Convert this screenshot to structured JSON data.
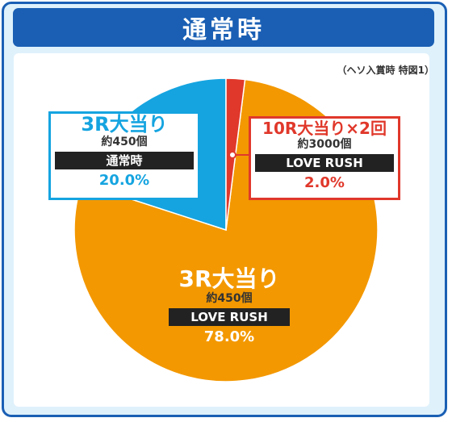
{
  "header": {
    "title": "通常時"
  },
  "note": "（ヘソ入賞時 特図1）",
  "colors": {
    "orange": "#f39800",
    "blue": "#15a4e0",
    "red": "#e0382b",
    "frame": "#1a5fb4"
  },
  "chart_data": {
    "type": "pie",
    "title": "通常時",
    "slices": [
      {
        "label": "3R大当り",
        "prize": "約450個",
        "mode": "LOVE RUSH",
        "value": 78.0,
        "pct_label": "78.0%",
        "color": "#f39800"
      },
      {
        "label": "3R大当り",
        "prize": "約450個",
        "mode": "通常時",
        "value": 20.0,
        "pct_label": "20.0%",
        "color": "#15a4e0"
      },
      {
        "label": "10R大当り×2回",
        "prize": "約3000個",
        "mode": "LOVE RUSH",
        "value": 2.0,
        "pct_label": "2.0%",
        "color": "#e0382b"
      }
    ]
  }
}
